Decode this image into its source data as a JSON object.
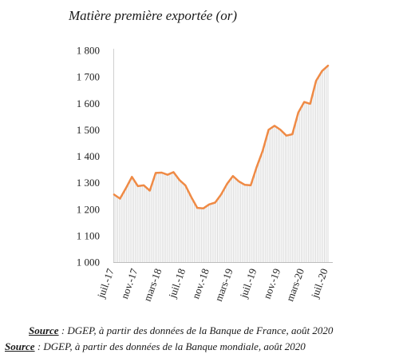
{
  "chart_data": {
    "type": "area",
    "title": "Matière première exportée (or)",
    "xlabel": "",
    "ylabel": "",
    "ylim": [
      1000,
      1800
    ],
    "yticks": [
      "1 000",
      "1 100",
      "1 200",
      "1 300",
      "1 400",
      "1 500",
      "1 600",
      "1 700",
      "1 800"
    ],
    "ytick_values": [
      1000,
      1100,
      1200,
      1300,
      1400,
      1500,
      1600,
      1700,
      1800
    ],
    "xtick_labels": [
      "juil.-17",
      "nov.-17",
      "mars-18",
      "juil.-18",
      "nov.-18",
      "mars-19",
      "juil.-19",
      "nov.-19",
      "mars-20",
      "juil.-20"
    ],
    "x": [
      "juil.-17",
      "août-17",
      "sept.-17",
      "oct.-17",
      "nov.-17",
      "déc.-17",
      "janv.-18",
      "févr.-18",
      "mars-18",
      "avr.-18",
      "mai-18",
      "juin-18",
      "juil.-18",
      "août-18",
      "sept.-18",
      "oct.-18",
      "nov.-18",
      "déc.-18",
      "janv.-19",
      "févr.-19",
      "mars-19",
      "avr.-19",
      "mai-19",
      "juin-19",
      "juil.-19",
      "août-19",
      "sept.-19",
      "oct.-19",
      "nov.-19",
      "déc.-19",
      "janv.-20",
      "févr.-20",
      "mars-20",
      "avr.-20",
      "mai-20",
      "juin-20",
      "juil.-20"
    ],
    "series": [
      {
        "values": [
          1255,
          1240,
          1280,
          1322,
          1287,
          1290,
          1270,
          1337,
          1338,
          1330,
          1340,
          1310,
          1290,
          1245,
          1205,
          1203,
          1218,
          1225,
          1255,
          1295,
          1325,
          1305,
          1292,
          1290,
          1360,
          1420,
          1500,
          1515,
          1500,
          1478,
          1483,
          1565,
          1605,
          1598,
          1685,
          1722,
          1742
        ],
        "color": "#ef8a45",
        "fill": "#d9d9d9"
      }
    ],
    "grid": false,
    "legend": "none"
  },
  "sources": [
    {
      "label": "Source",
      "text": " : DGEP, à partir des données de la Banque de France, août 2020"
    },
    {
      "label": "Source",
      "text": " : DGEP, à partir des données de la Banque mondiale, août 2020"
    }
  ]
}
